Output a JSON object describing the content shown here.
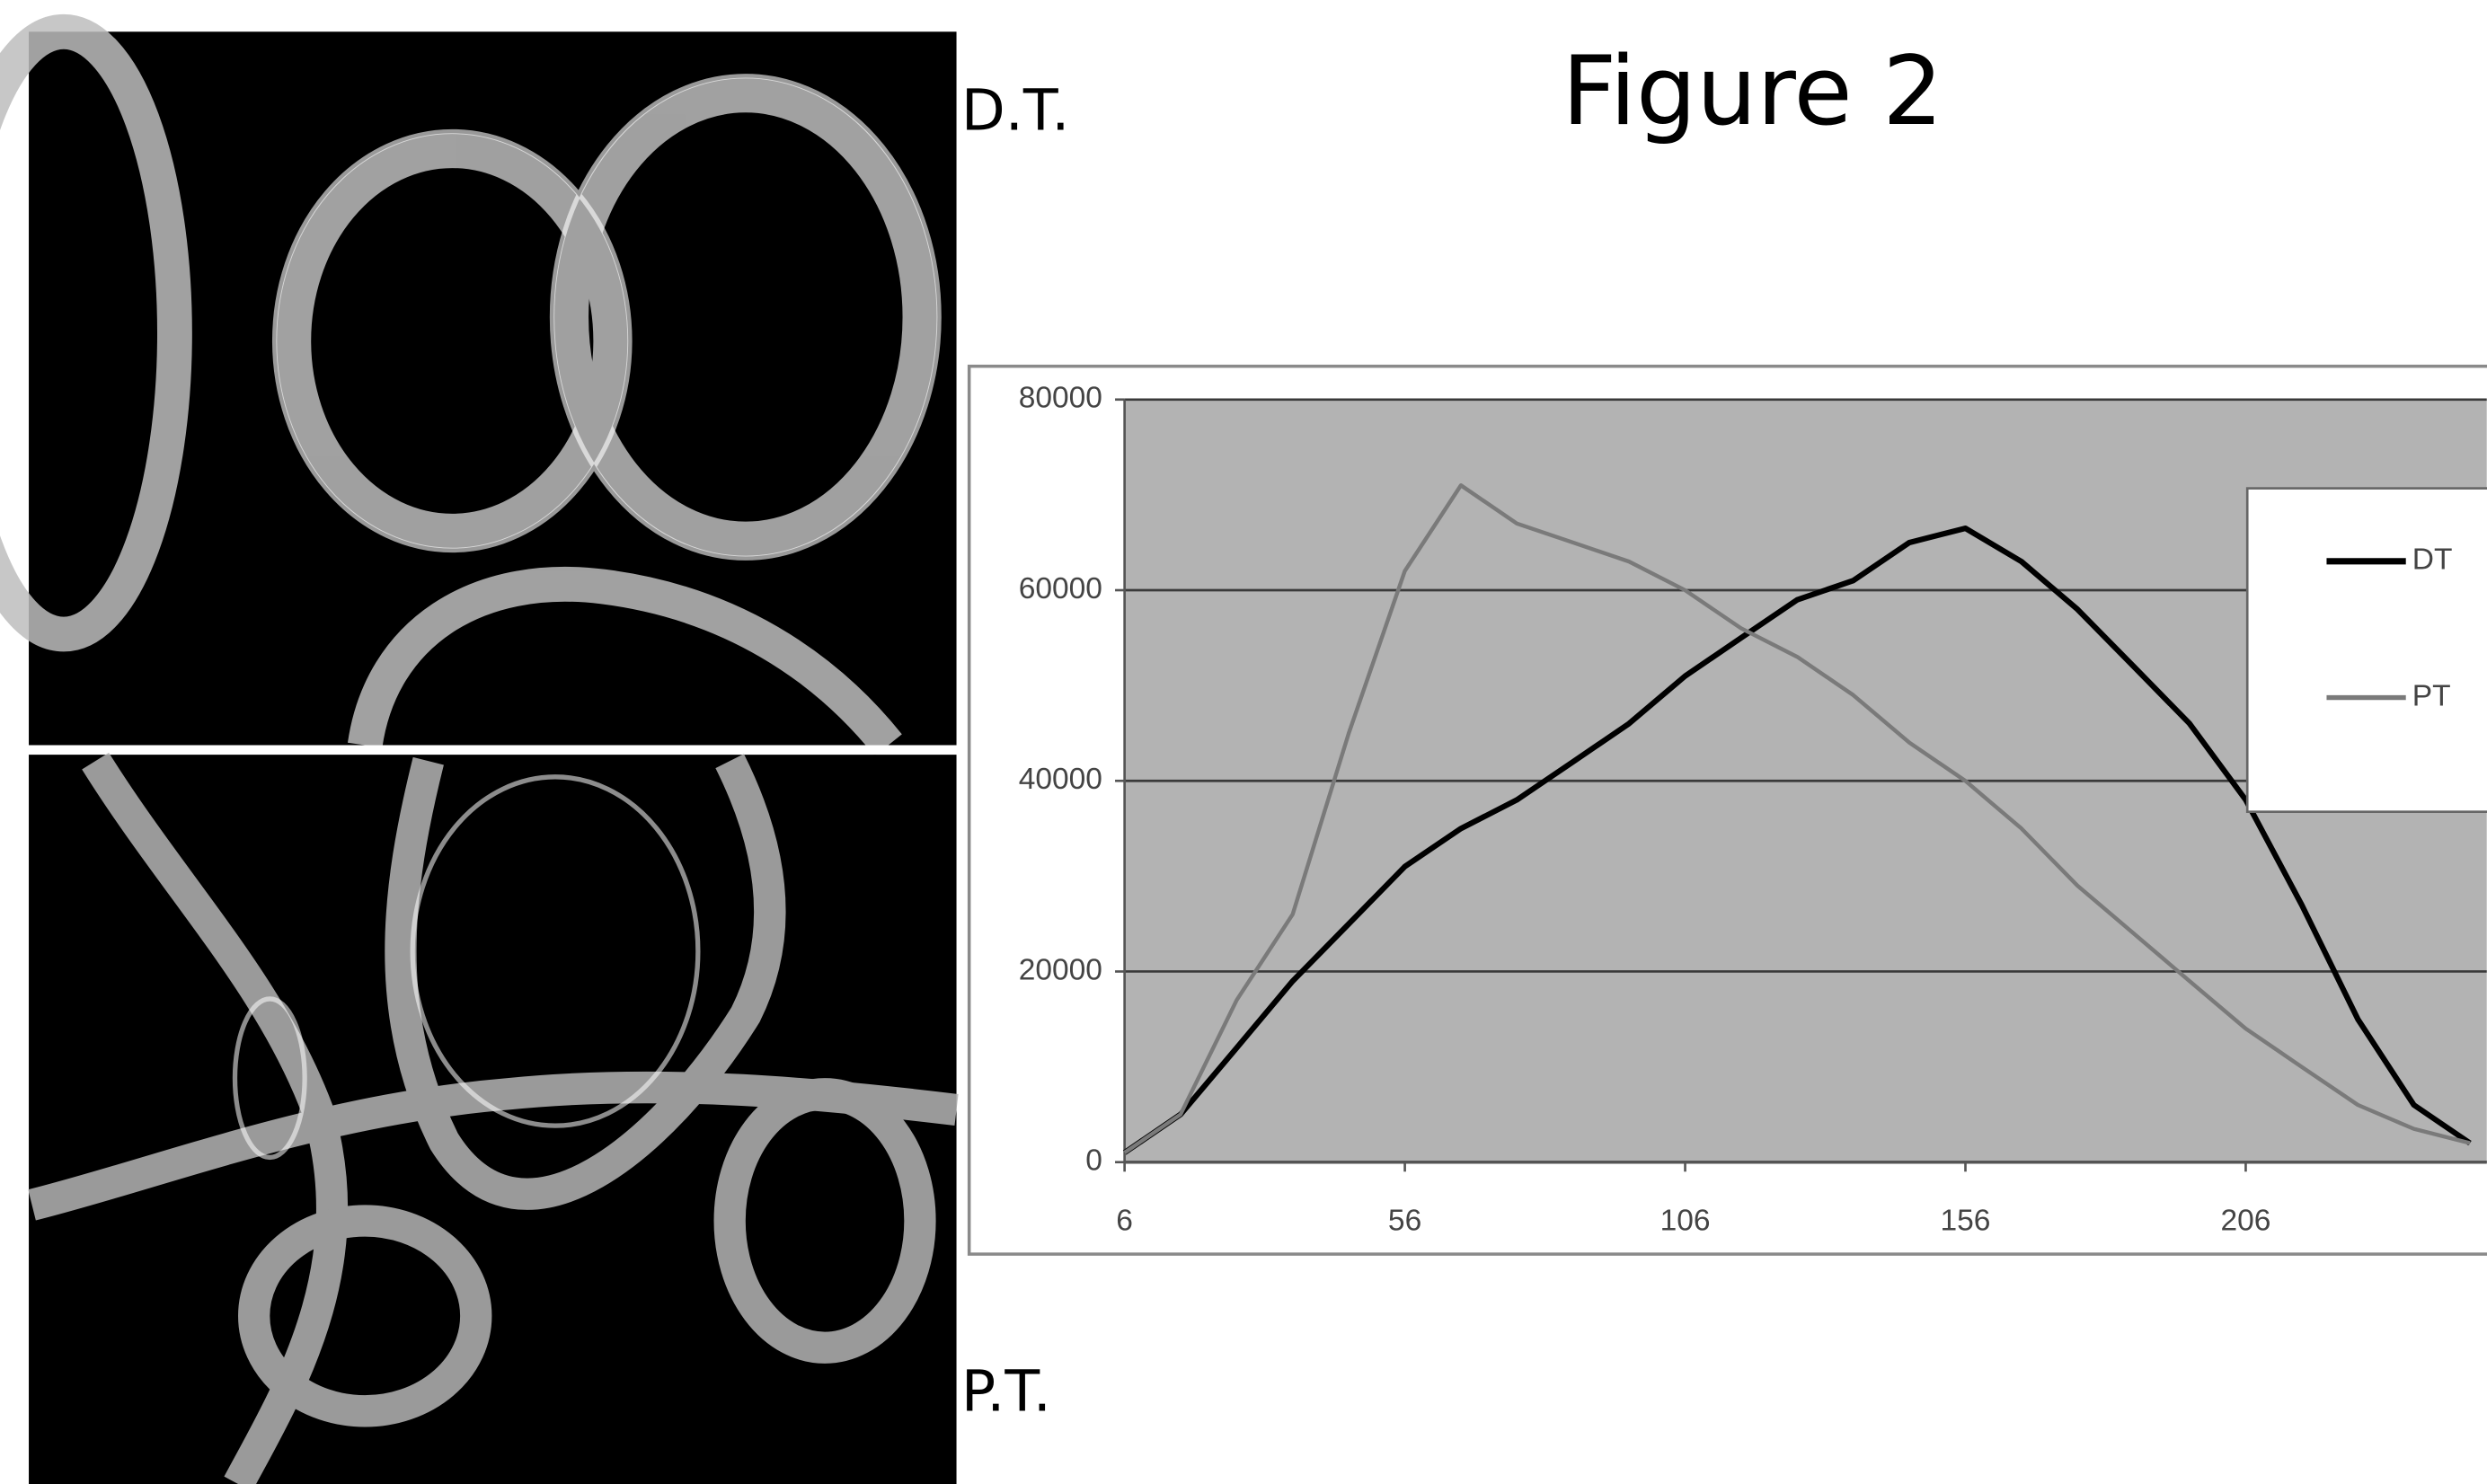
{
  "figure_title": "Figure 2",
  "panel_labels": {
    "top": "D.T.",
    "bottom": "P.T."
  },
  "chart_data": {
    "type": "line",
    "x": [
      6,
      16,
      26,
      36,
      46,
      56,
      66,
      76,
      86,
      96,
      106,
      116,
      126,
      136,
      146,
      156,
      166,
      176,
      186,
      196,
      206,
      216,
      226,
      236,
      246
    ],
    "series": [
      {
        "name": "DT",
        "color": "#000000",
        "values": [
          1000,
          5000,
          12000,
          19000,
          25000,
          31000,
          35000,
          38000,
          42000,
          46000,
          51000,
          55000,
          59000,
          61000,
          65000,
          66500,
          63000,
          58000,
          52000,
          46000,
          38000,
          27000,
          15000,
          6000,
          2000
        ]
      },
      {
        "name": "PT",
        "color": "#7a7a7a",
        "values": [
          1000,
          5000,
          17000,
          26000,
          45000,
          62000,
          71000,
          67000,
          65000,
          63000,
          60000,
          56000,
          53000,
          49000,
          44000,
          40000,
          35000,
          29000,
          24000,
          19000,
          14000,
          10000,
          6000,
          3500,
          2000
        ]
      }
    ],
    "xlim": [
      6,
      249
    ],
    "xticks": [
      6,
      56,
      106,
      156,
      206
    ],
    "ylim": [
      0,
      80000
    ],
    "yticks": [
      0,
      20000,
      40000,
      60000,
      80000
    ],
    "grid": true,
    "legend": "right"
  }
}
